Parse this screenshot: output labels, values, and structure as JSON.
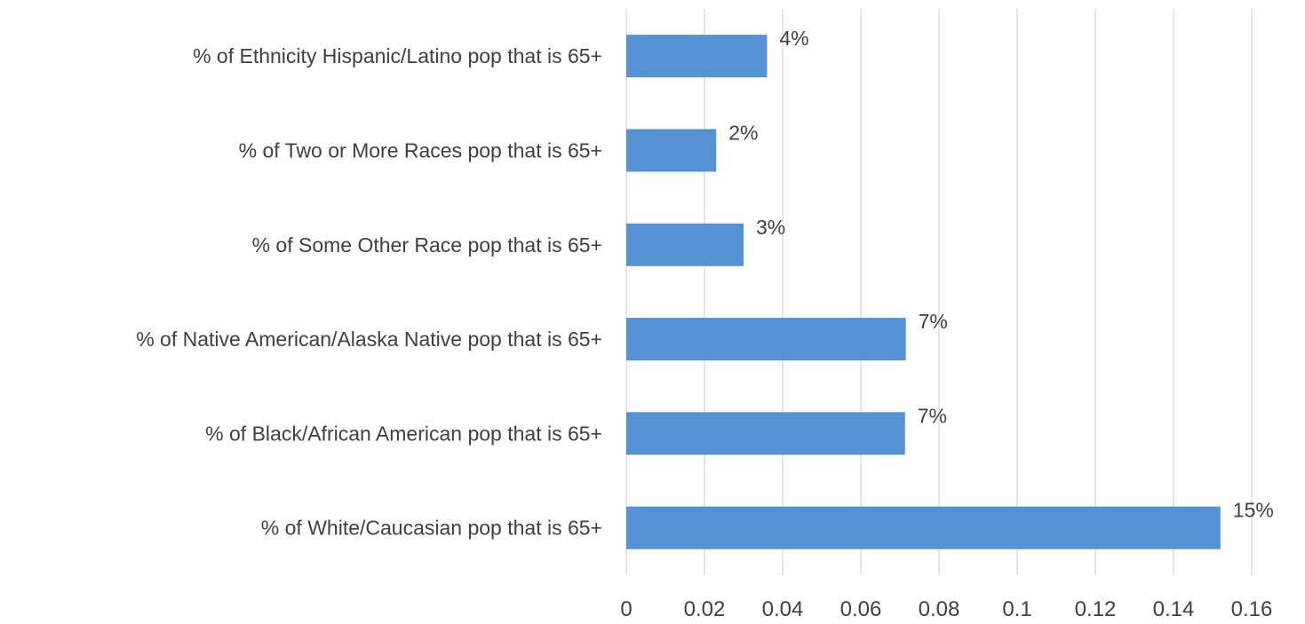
{
  "chart_data": {
    "type": "bar",
    "orientation": "horizontal",
    "categories": [
      "% of Ethnicity Hispanic/Latino pop that is 65+",
      "% of Two or More Races pop that is 65+",
      "% of Some Other Race pop that is 65+",
      "% of Native American/Alaska Native pop that is 65+",
      "% of Black/African American pop that is 65+",
      "% of White/Caucasian pop that is 65+"
    ],
    "values": [
      0.036,
      0.023,
      0.03,
      0.0715,
      0.0713,
      0.152
    ],
    "data_labels": [
      "4%",
      "2%",
      "3%",
      "7%",
      "7%",
      "15%"
    ],
    "xticks": [
      0,
      0.02,
      0.04,
      0.06,
      0.08,
      0.1,
      0.12,
      0.14,
      0.16
    ],
    "xtick_labels": [
      "0",
      "0.02",
      "0.04",
      "0.06",
      "0.08",
      "0.1",
      "0.12",
      "0.14",
      "0.16"
    ],
    "xlim": [
      0,
      0.16
    ],
    "title": "",
    "xlabel": "",
    "ylabel": "",
    "grid": "vertical",
    "legend": "none",
    "bar_color": "#5592d4"
  }
}
